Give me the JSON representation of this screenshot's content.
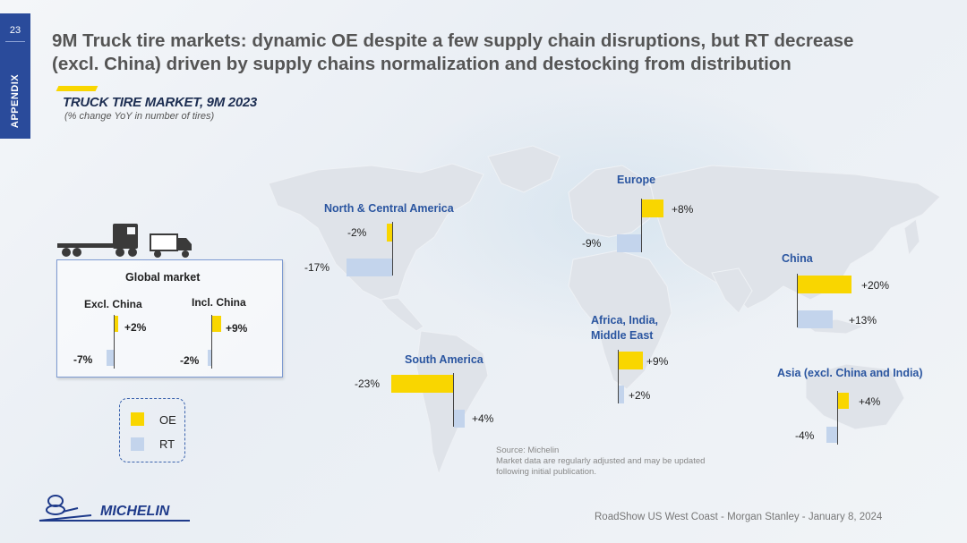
{
  "slide": {
    "page_number": "23",
    "section_label": "APPENDIX",
    "title_line1": "9M Truck tire markets: dynamic OE despite a few supply chain disruptions, but RT decrease",
    "title_line2": "(excl. China) driven by supply chains normalization and destocking from distribution",
    "subtitle": "TRUCK TIRE MARKET, 9M 2023",
    "subnote": "(% change YoY in number of tires)",
    "source_line1": "Source: Michelin",
    "source_line2": "Market data are regularly adjusted and may be updated",
    "source_line3": "following initial publication.",
    "footer": "RoadShow US West Coast - Morgan Stanley - January 8, 2024",
    "logo_text": "MICHELIN"
  },
  "legend": {
    "oe": "OE",
    "rt": "RT"
  },
  "colors": {
    "oe": "#f9d600",
    "rt": "#c3d4ec",
    "accent": "#2a4b9b",
    "region_title": "#2a55a0"
  },
  "global_market": {
    "title": "Global market",
    "excl_china": {
      "label": "Excl. China",
      "oe_label": "+2%",
      "rt_label": "-7%"
    },
    "incl_china": {
      "label": "Incl. China",
      "oe_label": "+9%",
      "rt_label": "-2%"
    }
  },
  "chart_data": {
    "type": "bar",
    "title": "TRUCK TIRE MARKET, 9M 2023",
    "subtitle": "(% change YoY in number of tires)",
    "series_names": [
      "OE",
      "RT"
    ],
    "global": [
      {
        "name": "Excl. China",
        "oe": 2,
        "rt": -7
      },
      {
        "name": "Incl. China",
        "oe": 9,
        "rt": -2
      }
    ],
    "regions": [
      {
        "key": "na",
        "name": "North & Central America",
        "oe": -2,
        "rt": -17,
        "oe_label": "-2%",
        "rt_label": "-17%"
      },
      {
        "key": "eu",
        "name": "Europe",
        "oe": 8,
        "rt": -9,
        "oe_label": "+8%",
        "rt_label": "-9%"
      },
      {
        "key": "cn",
        "name": "China",
        "oe": 20,
        "rt": 13,
        "oe_label": "+20%",
        "rt_label": "+13%"
      },
      {
        "key": "aime",
        "name": "Africa, India, Middle East",
        "oe": 9,
        "rt": 2,
        "oe_label": "+9%",
        "rt_label": "+2%"
      },
      {
        "key": "sa",
        "name": "South America",
        "oe": -23,
        "rt": 4,
        "oe_label": "-23%",
        "rt_label": "+4%"
      },
      {
        "key": "asia",
        "name": "Asia (excl. China and India)",
        "oe": 4,
        "rt": -4,
        "oe_label": "+4%",
        "rt_label": "-4%"
      }
    ]
  }
}
